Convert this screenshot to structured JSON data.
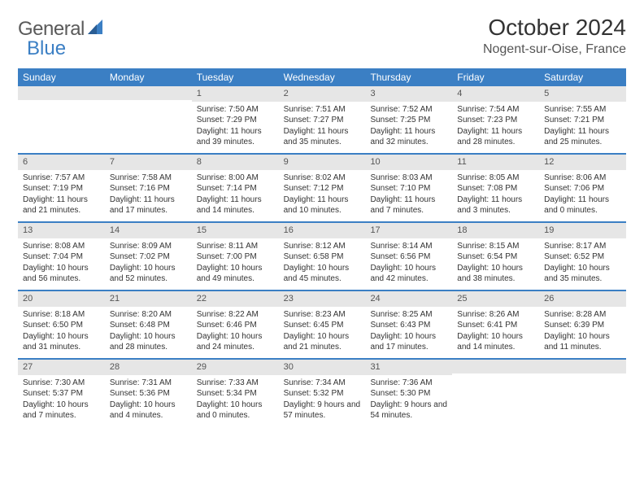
{
  "brand": {
    "part1": "General",
    "part2": "Blue"
  },
  "title": "October 2024",
  "location": "Nogent-sur-Oise, France",
  "colors": {
    "header_bg": "#3b7fc4",
    "daynum_bg": "#e6e6e6",
    "rule": "#3b7fc4",
    "text": "#333333",
    "logo_gray": "#5a5a5a"
  },
  "day_names": [
    "Sunday",
    "Monday",
    "Tuesday",
    "Wednesday",
    "Thursday",
    "Friday",
    "Saturday"
  ],
  "weeks": [
    [
      null,
      null,
      {
        "n": "1",
        "sr": "Sunrise: 7:50 AM",
        "ss": "Sunset: 7:29 PM",
        "dl": "Daylight: 11 hours and 39 minutes."
      },
      {
        "n": "2",
        "sr": "Sunrise: 7:51 AM",
        "ss": "Sunset: 7:27 PM",
        "dl": "Daylight: 11 hours and 35 minutes."
      },
      {
        "n": "3",
        "sr": "Sunrise: 7:52 AM",
        "ss": "Sunset: 7:25 PM",
        "dl": "Daylight: 11 hours and 32 minutes."
      },
      {
        "n": "4",
        "sr": "Sunrise: 7:54 AM",
        "ss": "Sunset: 7:23 PM",
        "dl": "Daylight: 11 hours and 28 minutes."
      },
      {
        "n": "5",
        "sr": "Sunrise: 7:55 AM",
        "ss": "Sunset: 7:21 PM",
        "dl": "Daylight: 11 hours and 25 minutes."
      }
    ],
    [
      {
        "n": "6",
        "sr": "Sunrise: 7:57 AM",
        "ss": "Sunset: 7:19 PM",
        "dl": "Daylight: 11 hours and 21 minutes."
      },
      {
        "n": "7",
        "sr": "Sunrise: 7:58 AM",
        "ss": "Sunset: 7:16 PM",
        "dl": "Daylight: 11 hours and 17 minutes."
      },
      {
        "n": "8",
        "sr": "Sunrise: 8:00 AM",
        "ss": "Sunset: 7:14 PM",
        "dl": "Daylight: 11 hours and 14 minutes."
      },
      {
        "n": "9",
        "sr": "Sunrise: 8:02 AM",
        "ss": "Sunset: 7:12 PM",
        "dl": "Daylight: 11 hours and 10 minutes."
      },
      {
        "n": "10",
        "sr": "Sunrise: 8:03 AM",
        "ss": "Sunset: 7:10 PM",
        "dl": "Daylight: 11 hours and 7 minutes."
      },
      {
        "n": "11",
        "sr": "Sunrise: 8:05 AM",
        "ss": "Sunset: 7:08 PM",
        "dl": "Daylight: 11 hours and 3 minutes."
      },
      {
        "n": "12",
        "sr": "Sunrise: 8:06 AM",
        "ss": "Sunset: 7:06 PM",
        "dl": "Daylight: 11 hours and 0 minutes."
      }
    ],
    [
      {
        "n": "13",
        "sr": "Sunrise: 8:08 AM",
        "ss": "Sunset: 7:04 PM",
        "dl": "Daylight: 10 hours and 56 minutes."
      },
      {
        "n": "14",
        "sr": "Sunrise: 8:09 AM",
        "ss": "Sunset: 7:02 PM",
        "dl": "Daylight: 10 hours and 52 minutes."
      },
      {
        "n": "15",
        "sr": "Sunrise: 8:11 AM",
        "ss": "Sunset: 7:00 PM",
        "dl": "Daylight: 10 hours and 49 minutes."
      },
      {
        "n": "16",
        "sr": "Sunrise: 8:12 AM",
        "ss": "Sunset: 6:58 PM",
        "dl": "Daylight: 10 hours and 45 minutes."
      },
      {
        "n": "17",
        "sr": "Sunrise: 8:14 AM",
        "ss": "Sunset: 6:56 PM",
        "dl": "Daylight: 10 hours and 42 minutes."
      },
      {
        "n": "18",
        "sr": "Sunrise: 8:15 AM",
        "ss": "Sunset: 6:54 PM",
        "dl": "Daylight: 10 hours and 38 minutes."
      },
      {
        "n": "19",
        "sr": "Sunrise: 8:17 AM",
        "ss": "Sunset: 6:52 PM",
        "dl": "Daylight: 10 hours and 35 minutes."
      }
    ],
    [
      {
        "n": "20",
        "sr": "Sunrise: 8:18 AM",
        "ss": "Sunset: 6:50 PM",
        "dl": "Daylight: 10 hours and 31 minutes."
      },
      {
        "n": "21",
        "sr": "Sunrise: 8:20 AM",
        "ss": "Sunset: 6:48 PM",
        "dl": "Daylight: 10 hours and 28 minutes."
      },
      {
        "n": "22",
        "sr": "Sunrise: 8:22 AM",
        "ss": "Sunset: 6:46 PM",
        "dl": "Daylight: 10 hours and 24 minutes."
      },
      {
        "n": "23",
        "sr": "Sunrise: 8:23 AM",
        "ss": "Sunset: 6:45 PM",
        "dl": "Daylight: 10 hours and 21 minutes."
      },
      {
        "n": "24",
        "sr": "Sunrise: 8:25 AM",
        "ss": "Sunset: 6:43 PM",
        "dl": "Daylight: 10 hours and 17 minutes."
      },
      {
        "n": "25",
        "sr": "Sunrise: 8:26 AM",
        "ss": "Sunset: 6:41 PM",
        "dl": "Daylight: 10 hours and 14 minutes."
      },
      {
        "n": "26",
        "sr": "Sunrise: 8:28 AM",
        "ss": "Sunset: 6:39 PM",
        "dl": "Daylight: 10 hours and 11 minutes."
      }
    ],
    [
      {
        "n": "27",
        "sr": "Sunrise: 7:30 AM",
        "ss": "Sunset: 5:37 PM",
        "dl": "Daylight: 10 hours and 7 minutes."
      },
      {
        "n": "28",
        "sr": "Sunrise: 7:31 AM",
        "ss": "Sunset: 5:36 PM",
        "dl": "Daylight: 10 hours and 4 minutes."
      },
      {
        "n": "29",
        "sr": "Sunrise: 7:33 AM",
        "ss": "Sunset: 5:34 PM",
        "dl": "Daylight: 10 hours and 0 minutes."
      },
      {
        "n": "30",
        "sr": "Sunrise: 7:34 AM",
        "ss": "Sunset: 5:32 PM",
        "dl": "Daylight: 9 hours and 57 minutes."
      },
      {
        "n": "31",
        "sr": "Sunrise: 7:36 AM",
        "ss": "Sunset: 5:30 PM",
        "dl": "Daylight: 9 hours and 54 minutes."
      },
      null,
      null
    ]
  ]
}
